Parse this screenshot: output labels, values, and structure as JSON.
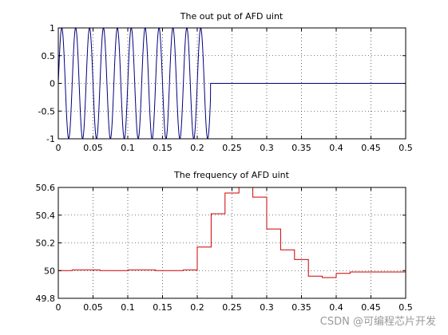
{
  "watermark": "CSDN @可编程芯片开发",
  "chart_data": [
    {
      "type": "line",
      "title": "The out put of AFD uint",
      "xlabel": "",
      "ylabel": "",
      "xlim": [
        0,
        0.5
      ],
      "ylim": [
        -1,
        1
      ],
      "grid": true,
      "line_color": "#00007f",
      "xticks": [
        0,
        0.05,
        0.1,
        0.15,
        0.2,
        0.25,
        0.3,
        0.35,
        0.4,
        0.45,
        0.5
      ],
      "xtick_labels": [
        "0",
        "0.05",
        "0.1",
        "0.15",
        "0.2",
        "0.25",
        "0.3",
        "0.35",
        "0.4",
        "0.45",
        "0.5"
      ],
      "yticks": [
        -1,
        -0.5,
        0,
        0.5,
        1
      ],
      "ytick_labels": [
        "-1",
        "-0.5",
        "0",
        "0.5",
        "1"
      ],
      "series": [
        {
          "signal": "sine",
          "frequency_hz": 50,
          "amplitude": 1,
          "active_until": 0.219,
          "value_after": 0
        }
      ]
    },
    {
      "type": "line",
      "title": "The frequency of AFD uint",
      "xlabel": "",
      "ylabel": "",
      "xlim": [
        0,
        0.5
      ],
      "ylim": [
        49.8,
        50.6
      ],
      "grid": true,
      "line_color": "#cc0000",
      "step": true,
      "xticks": [
        0,
        0.05,
        0.1,
        0.15,
        0.2,
        0.25,
        0.3,
        0.35,
        0.4,
        0.45,
        0.5
      ],
      "xtick_labels": [
        "0",
        "0.05",
        "0.1",
        "0.15",
        "0.2",
        "0.25",
        "0.3",
        "0.35",
        "0.4",
        "0.45",
        "0.5"
      ],
      "yticks": [
        49.8,
        50,
        50.2,
        50.4,
        50.6
      ],
      "ytick_labels": [
        "49.8",
        "50",
        "50.2",
        "50.4",
        "50.6"
      ],
      "series": [
        {
          "x": [
            0,
            0.02,
            0.06,
            0.1,
            0.14,
            0.18,
            0.2,
            0.22,
            0.24,
            0.26,
            0.28,
            0.3,
            0.32,
            0.34,
            0.36,
            0.38,
            0.4,
            0.42,
            0.5
          ],
          "y": [
            50.0,
            50.005,
            50.0,
            50.005,
            50.0,
            50.005,
            50.17,
            50.41,
            50.56,
            50.62,
            50.53,
            50.3,
            50.15,
            50.08,
            49.96,
            49.95,
            49.98,
            49.99,
            50.0
          ]
        }
      ]
    }
  ]
}
